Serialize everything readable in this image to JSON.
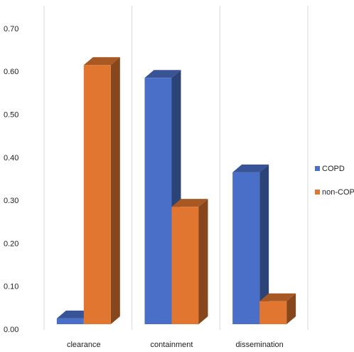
{
  "chart_data": {
    "type": "bar3d",
    "categories": [
      "clearance",
      "containment",
      "dissemination"
    ],
    "series": [
      {
        "name": "COPD",
        "color": "#4a6fc8",
        "values": [
          0.04,
          0.6,
          0.38
        ]
      },
      {
        "name": "non-COPD",
        "color": "#e0762f",
        "values": [
          0.63,
          0.3,
          0.08
        ]
      }
    ],
    "ylim": [
      0,
      0.7
    ],
    "yticks": [
      {
        "value": 0,
        "label": "0.00"
      },
      {
        "value": 0.1,
        "label": "0.10"
      },
      {
        "value": 0.2,
        "label": "0.20"
      },
      {
        "value": 0.3,
        "label": "0.30"
      },
      {
        "value": 0.4,
        "label": "0.40"
      },
      {
        "value": 0.5,
        "label": "0.50"
      },
      {
        "value": 0.6,
        "label": "0.60"
      },
      {
        "value": 0.7,
        "label": "0.70"
      }
    ],
    "legend": "right"
  }
}
